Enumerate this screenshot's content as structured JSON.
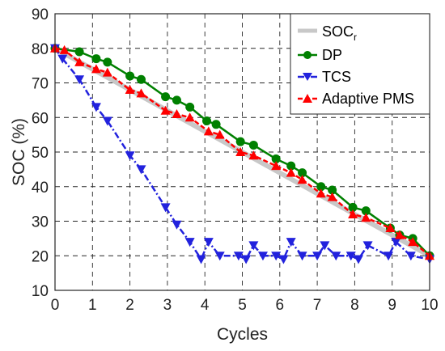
{
  "chart_data": {
    "type": "line",
    "xlabel": "Cycles",
    "ylabel": "SOC (%)",
    "xlim": [
      0,
      10
    ],
    "ylim": [
      10,
      90
    ],
    "xticks": [
      0,
      1,
      2,
      3,
      4,
      5,
      6,
      7,
      8,
      9,
      10
    ],
    "yticks": [
      10,
      20,
      30,
      40,
      50,
      60,
      70,
      80,
      90
    ],
    "grid": true,
    "grid_style": "dashed",
    "legend_position": "top-right",
    "series": [
      {
        "name": "SOC_r",
        "legend_main": "SOC",
        "legend_sub": "r",
        "color": "#c8c8c8",
        "style": "solid",
        "marker": "none",
        "x": [
          0,
          10
        ],
        "y": [
          80,
          20
        ]
      },
      {
        "name": "DP",
        "color": "#008000",
        "style": "solid",
        "marker": "circle",
        "x": [
          0,
          0.65,
          1.1,
          1.4,
          2.0,
          2.3,
          2.95,
          3.25,
          3.6,
          4.05,
          4.3,
          4.95,
          5.3,
          5.9,
          6.3,
          6.6,
          7.1,
          7.4,
          7.95,
          8.3,
          8.95,
          9.2,
          9.55,
          10
        ],
        "y": [
          80,
          79,
          77,
          76,
          72,
          71,
          66,
          65,
          63,
          59,
          58,
          53,
          52,
          48,
          46,
          44,
          40,
          39,
          34,
          33,
          28,
          26,
          25,
          20
        ]
      },
      {
        "name": "TCS",
        "color": "#2222dd",
        "style": "dashdot",
        "marker": "triangle-down",
        "x": [
          0,
          0.2,
          0.65,
          1.1,
          1.4,
          2.0,
          2.3,
          2.95,
          3.25,
          3.6,
          3.9,
          4.1,
          4.4,
          4.9,
          5.1,
          5.3,
          5.55,
          5.9,
          6.1,
          6.3,
          6.6,
          7.0,
          7.2,
          7.5,
          7.9,
          8.1,
          8.35,
          8.9,
          9.1,
          9.5,
          10
        ],
        "y": [
          80,
          77,
          71,
          63,
          59,
          49,
          45,
          34,
          29,
          24,
          19,
          24,
          20,
          20,
          19,
          23,
          20,
          20,
          19,
          24,
          20,
          20,
          23,
          20,
          20,
          19,
          23,
          20,
          24,
          20,
          19
        ]
      },
      {
        "name": "Adaptive PMS",
        "color": "#ff0000",
        "style": "dashed",
        "marker": "triangle-up",
        "x": [
          0,
          0.25,
          0.65,
          1.1,
          1.4,
          2.0,
          2.3,
          2.95,
          3.25,
          3.6,
          4.1,
          4.4,
          4.95,
          5.3,
          5.9,
          6.3,
          6.6,
          7.1,
          7.4,
          7.95,
          8.3,
          8.95,
          9.2,
          9.55,
          10
        ],
        "y": [
          80,
          79.5,
          76,
          74,
          73,
          68,
          67,
          62,
          61,
          60,
          56,
          55,
          50,
          49,
          46,
          44,
          42,
          38,
          37,
          32,
          31,
          28,
          26,
          24,
          20
        ]
      }
    ]
  }
}
